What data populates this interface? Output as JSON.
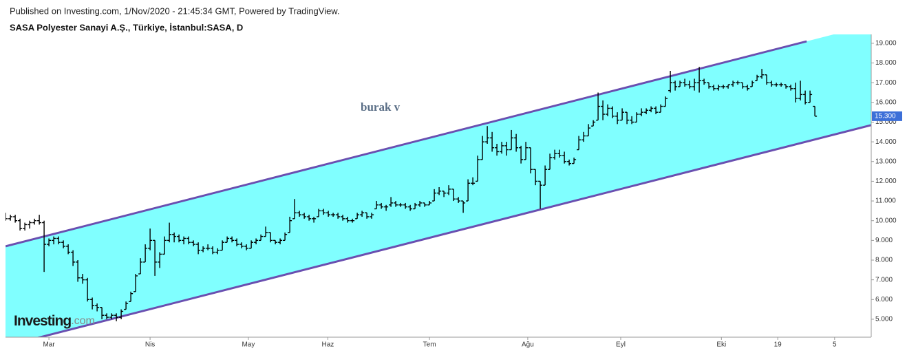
{
  "publisher": "Published on Investing.com, 1/Nov/2020 - 21:45:34 GMT, Powered by TradingView.",
  "logo": {
    "name": "Investing",
    "suffix": ".com"
  },
  "chart_data": {
    "type": "ohlc",
    "title": "SASA Polyester Sanayi A.Ş., Türkiye, İstanbul:SASA, D",
    "color": "#000000",
    "xlim": [
      -0.3,
      179.7
    ],
    "xticks": [
      {
        "value": 9,
        "label": "Mar"
      },
      {
        "value": 30,
        "label": "Nis"
      },
      {
        "value": 50.4,
        "label": "May"
      },
      {
        "value": 66.9,
        "label": "Haz"
      },
      {
        "value": 88,
        "label": "Tem"
      },
      {
        "value": 108.4,
        "label": "Ağu"
      },
      {
        "value": 127.7,
        "label": "Eyl"
      },
      {
        "value": 148.6,
        "label": "Eki"
      },
      {
        "value": 160.3,
        "label": "19"
      },
      {
        "value": 172.1,
        "label": "5"
      }
    ],
    "ylim": [
      4.09,
      19.45
    ],
    "yticks": [
      {
        "value": 5,
        "label": "5.000"
      },
      {
        "value": 6,
        "label": "6.000"
      },
      {
        "value": 7,
        "label": "7.000"
      },
      {
        "value": 8,
        "label": "8.000"
      },
      {
        "value": 9,
        "label": "9.000"
      },
      {
        "value": 10,
        "label": "10.000"
      },
      {
        "value": 11,
        "label": "11.000"
      },
      {
        "value": 12,
        "label": "12.000"
      },
      {
        "value": 13,
        "label": "13.000"
      },
      {
        "value": 14,
        "label": "14.000"
      },
      {
        "value": 15,
        "label": "15.000"
      },
      {
        "value": 16,
        "label": "16.000"
      },
      {
        "value": 17,
        "label": "17.000"
      },
      {
        "value": 18,
        "label": "18.000"
      },
      {
        "value": 19,
        "label": "19.000"
      }
    ],
    "last": {
      "value": 15.3,
      "label": "15.300",
      "color": "#3c6fd8"
    },
    "annotation": {
      "text": "burak v",
      "color": "#5a6e86"
    },
    "channel": {
      "fill": "#80ffff",
      "line_color": "#6a4fb0",
      "lines": [
        {
          "x": [
            0,
            166.3
          ],
          "y": [
            8.7,
            19.1
          ]
        },
        {
          "x": [
            0,
            179.7
          ],
          "y": [
            3.64,
            14.85
          ]
        }
      ]
    },
    "series": [
      {
        "values": [
          [
            10.2,
            10.4,
            10.0,
            10.1
          ],
          [
            10.1,
            10.3,
            10.0,
            10.2
          ],
          [
            10.2,
            10.3,
            9.9,
            10.0
          ],
          [
            10.0,
            10.1,
            9.5,
            9.6
          ],
          [
            9.6,
            9.9,
            9.5,
            9.8
          ],
          [
            9.8,
            10.0,
            9.6,
            9.9
          ],
          [
            9.9,
            10.1,
            9.8,
            10.0
          ],
          [
            10.0,
            10.3,
            9.8,
            9.9
          ],
          [
            9.9,
            10.0,
            7.4,
            8.8
          ],
          [
            8.8,
            9.1,
            8.7,
            9.0
          ],
          [
            9.0,
            9.2,
            8.8,
            9.1
          ],
          [
            9.1,
            9.2,
            8.8,
            8.9
          ],
          [
            8.9,
            9.0,
            8.6,
            8.7
          ],
          [
            8.7,
            8.8,
            8.3,
            8.4
          ],
          [
            8.4,
            8.5,
            7.7,
            7.9
          ],
          [
            7.9,
            8.0,
            6.9,
            7.1
          ],
          [
            7.1,
            7.3,
            6.8,
            7.0
          ],
          [
            7.0,
            7.1,
            5.9,
            6.0
          ],
          [
            6.0,
            6.1,
            5.5,
            5.7
          ],
          [
            5.7,
            5.8,
            5.4,
            5.6
          ],
          [
            5.6,
            5.6,
            5.0,
            5.2
          ],
          [
            5.2,
            5.3,
            5.0,
            5.1
          ],
          [
            5.1,
            5.3,
            5.0,
            5.2
          ],
          [
            5.2,
            5.3,
            4.9,
            5.1
          ],
          [
            5.1,
            5.5,
            5.0,
            5.4
          ],
          [
            5.5,
            5.9,
            5.5,
            5.8
          ],
          [
            5.9,
            6.4,
            5.9,
            6.3
          ],
          [
            6.4,
            7.3,
            6.4,
            7.2
          ],
          [
            7.3,
            8.1,
            7.3,
            7.9
          ],
          [
            7.9,
            8.8,
            7.9,
            8.6
          ],
          [
            8.6,
            9.6,
            8.5,
            9.0
          ],
          [
            9.0,
            9.0,
            7.2,
            7.9
          ],
          [
            7.9,
            8.4,
            7.6,
            8.3
          ],
          [
            8.3,
            9.2,
            8.3,
            9.0
          ],
          [
            9.0,
            9.9,
            8.9,
            9.3
          ],
          [
            9.3,
            9.4,
            8.9,
            9.2
          ],
          [
            9.2,
            9.3,
            8.9,
            9.0
          ],
          [
            9.0,
            9.2,
            8.8,
            9.1
          ],
          [
            9.1,
            9.2,
            8.8,
            8.9
          ],
          [
            8.9,
            9.0,
            8.7,
            8.8
          ],
          [
            8.8,
            8.9,
            8.3,
            8.5
          ],
          [
            8.5,
            8.7,
            8.4,
            8.6
          ],
          [
            8.6,
            8.8,
            8.5,
            8.6
          ],
          [
            8.6,
            8.7,
            8.3,
            8.4
          ],
          [
            8.4,
            8.6,
            8.3,
            8.5
          ],
          [
            8.5,
            9.0,
            8.5,
            8.9
          ],
          [
            8.9,
            9.2,
            8.9,
            9.1
          ],
          [
            9.1,
            9.2,
            8.9,
            9.0
          ],
          [
            9.0,
            9.1,
            8.7,
            8.8
          ],
          [
            8.8,
            8.9,
            8.6,
            8.7
          ],
          [
            8.7,
            8.8,
            8.5,
            8.6
          ],
          [
            8.6,
            9.0,
            8.6,
            8.9
          ],
          [
            8.9,
            9.1,
            8.8,
            9.0
          ],
          [
            9.0,
            9.3,
            9.0,
            9.2
          ],
          [
            9.2,
            9.7,
            9.2,
            9.4
          ],
          [
            9.4,
            9.4,
            8.9,
            9.0
          ],
          [
            9.0,
            9.0,
            8.8,
            8.9
          ],
          [
            8.9,
            9.1,
            8.8,
            9.0
          ],
          [
            9.0,
            9.4,
            9.0,
            9.3
          ],
          [
            9.4,
            10.2,
            9.4,
            10.0
          ],
          [
            10.1,
            11.1,
            10.1,
            10.4
          ],
          [
            10.4,
            10.5,
            10.2,
            10.3
          ],
          [
            10.3,
            10.4,
            10.1,
            10.2
          ],
          [
            10.2,
            10.3,
            10.0,
            10.1
          ],
          [
            10.1,
            10.2,
            9.9,
            10.1
          ],
          [
            10.2,
            10.6,
            10.2,
            10.5
          ],
          [
            10.5,
            10.6,
            10.3,
            10.4
          ],
          [
            10.4,
            10.5,
            10.2,
            10.3
          ],
          [
            10.3,
            10.4,
            10.2,
            10.3
          ],
          [
            10.3,
            10.4,
            10.1,
            10.2
          ],
          [
            10.2,
            10.3,
            10.0,
            10.1
          ],
          [
            10.1,
            10.2,
            9.9,
            10.0
          ],
          [
            10.0,
            10.1,
            9.9,
            10.0
          ],
          [
            10.1,
            10.4,
            10.1,
            10.3
          ],
          [
            10.3,
            10.5,
            10.2,
            10.4
          ],
          [
            10.4,
            10.4,
            10.1,
            10.2
          ],
          [
            10.2,
            10.4,
            10.1,
            10.3
          ],
          [
            10.6,
            11.0,
            10.6,
            10.8
          ],
          [
            10.8,
            10.9,
            10.6,
            10.7
          ],
          [
            10.7,
            10.8,
            10.5,
            10.7
          ],
          [
            10.8,
            11.2,
            10.7,
            10.9
          ],
          [
            10.9,
            11.0,
            10.7,
            10.8
          ],
          [
            10.8,
            10.9,
            10.7,
            10.8
          ],
          [
            10.8,
            10.9,
            10.6,
            10.7
          ],
          [
            10.7,
            10.8,
            10.5,
            10.6
          ],
          [
            10.6,
            10.9,
            10.6,
            10.8
          ],
          [
            10.8,
            11.0,
            10.7,
            10.9
          ],
          [
            10.9,
            10.9,
            10.7,
            10.8
          ],
          [
            10.8,
            11.0,
            10.8,
            10.9
          ],
          [
            11.0,
            11.6,
            11.0,
            11.4
          ],
          [
            11.4,
            11.7,
            11.3,
            11.5
          ],
          [
            11.5,
            11.5,
            11.2,
            11.4
          ],
          [
            11.4,
            11.8,
            11.3,
            11.6
          ],
          [
            11.6,
            11.6,
            11.0,
            11.1
          ],
          [
            11.1,
            11.2,
            10.9,
            11.0
          ],
          [
            11.0,
            11.0,
            10.4,
            10.9
          ],
          [
            11.0,
            12.1,
            11.0,
            11.9
          ],
          [
            11.9,
            12.2,
            11.8,
            11.9
          ],
          [
            12.0,
            13.3,
            12.0,
            13.1
          ],
          [
            13.1,
            14.3,
            13.1,
            14.0
          ],
          [
            14.0,
            14.8,
            13.9,
            14.2
          ],
          [
            14.2,
            14.5,
            13.5,
            13.7
          ],
          [
            13.7,
            13.9,
            13.3,
            13.5
          ],
          [
            13.5,
            14.0,
            13.4,
            13.8
          ],
          [
            13.8,
            14.0,
            13.3,
            13.6
          ],
          [
            13.6,
            14.6,
            13.6,
            14.2
          ],
          [
            14.2,
            14.4,
            13.5,
            13.7
          ],
          [
            13.7,
            13.8,
            12.9,
            13.1
          ],
          [
            13.1,
            14.0,
            13.1,
            13.7
          ],
          [
            13.7,
            13.7,
            12.4,
            12.6
          ],
          [
            12.6,
            12.6,
            11.8,
            12.0
          ],
          [
            12.0,
            12.0,
            10.6,
            11.8
          ],
          [
            11.8,
            12.8,
            11.8,
            12.6
          ],
          [
            12.6,
            13.4,
            12.6,
            13.2
          ],
          [
            13.2,
            13.6,
            13.1,
            13.4
          ],
          [
            13.4,
            13.6,
            13.2,
            13.3
          ],
          [
            13.3,
            13.5,
            12.9,
            13.0
          ],
          [
            13.0,
            13.1,
            12.8,
            12.9
          ],
          [
            12.9,
            13.2,
            12.9,
            13.1
          ],
          [
            13.6,
            14.3,
            13.6,
            14.1
          ],
          [
            14.1,
            14.5,
            14.0,
            14.3
          ],
          [
            14.3,
            14.9,
            14.3,
            14.7
          ],
          [
            14.8,
            15.1,
            14.8,
            15.0
          ],
          [
            15.1,
            16.5,
            15.1,
            15.8
          ],
          [
            15.8,
            16.1,
            15.1,
            15.4
          ],
          [
            15.4,
            15.9,
            15.3,
            15.7
          ],
          [
            15.7,
            15.8,
            15.2,
            15.3
          ],
          [
            15.3,
            15.5,
            14.9,
            15.1
          ],
          [
            15.1,
            15.7,
            15.1,
            15.5
          ],
          [
            15.5,
            15.5,
            14.9,
            15.1
          ],
          [
            15.1,
            15.3,
            14.9,
            15.0
          ],
          [
            15.0,
            15.5,
            15.0,
            15.4
          ],
          [
            15.4,
            15.7,
            15.3,
            15.5
          ],
          [
            15.5,
            15.7,
            15.4,
            15.6
          ],
          [
            15.6,
            15.8,
            15.5,
            15.7
          ],
          [
            15.7,
            15.8,
            15.4,
            15.5
          ],
          [
            15.5,
            15.9,
            15.5,
            15.8
          ],
          [
            15.8,
            16.3,
            15.8,
            16.2
          ],
          [
            16.6,
            17.6,
            16.5,
            17.0
          ],
          [
            17.0,
            17.1,
            16.6,
            16.8
          ],
          [
            16.8,
            17.1,
            16.8,
            17.0
          ],
          [
            17.0,
            17.2,
            16.8,
            16.9
          ],
          [
            16.9,
            17.1,
            16.7,
            16.8
          ],
          [
            16.8,
            17.2,
            16.6,
            17.0
          ],
          [
            17.0,
            17.8,
            16.5,
            17.1
          ],
          [
            17.1,
            17.2,
            16.9,
            17.0
          ],
          [
            17.0,
            17.0,
            16.7,
            16.8
          ],
          [
            16.8,
            16.9,
            16.6,
            16.7
          ],
          [
            16.7,
            16.9,
            16.6,
            16.8
          ],
          [
            16.8,
            16.9,
            16.7,
            16.8
          ],
          [
            16.8,
            16.9,
            16.7,
            16.9
          ],
          [
            16.9,
            17.1,
            16.8,
            17.0
          ],
          [
            17.0,
            17.1,
            16.9,
            17.0
          ],
          [
            17.0,
            17.0,
            16.7,
            16.8
          ],
          [
            16.8,
            16.9,
            16.6,
            16.7
          ],
          [
            16.8,
            17.1,
            16.8,
            17.0
          ],
          [
            17.1,
            17.4,
            17.1,
            17.3
          ],
          [
            17.3,
            17.7,
            17.2,
            17.4
          ],
          [
            17.4,
            17.4,
            16.9,
            17.0
          ],
          [
            17.0,
            17.1,
            16.8,
            16.9
          ],
          [
            16.9,
            17.0,
            16.8,
            16.9
          ],
          [
            16.9,
            17.0,
            16.8,
            16.9
          ],
          [
            16.9,
            16.9,
            16.7,
            16.8
          ],
          [
            16.8,
            16.9,
            16.6,
            16.7
          ],
          [
            16.7,
            17.0,
            16.0,
            16.2
          ],
          [
            16.2,
            17.1,
            16.1,
            16.4
          ],
          [
            16.4,
            16.6,
            15.9,
            16.0
          ],
          [
            16.0,
            16.6,
            16.0,
            16.4
          ],
          [
            15.8,
            15.8,
            15.3,
            15.3
          ]
        ]
      }
    ]
  }
}
